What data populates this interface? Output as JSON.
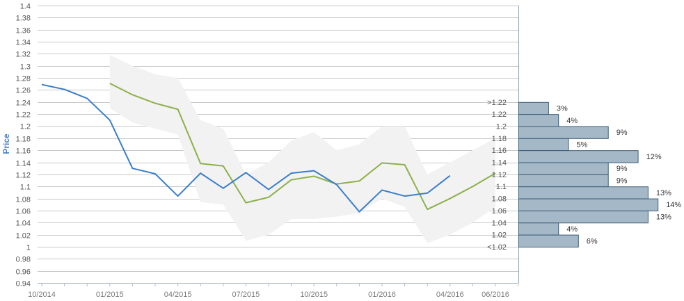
{
  "chart_data": {
    "type": "line",
    "ylabel": "Price",
    "ylim": [
      0.94,
      1.4
    ],
    "y_ticks": [
      "0.94",
      "0.96",
      "0.98",
      "1",
      "1.02",
      "1.04",
      "1.06",
      "1.08",
      "1.1",
      "1.12",
      "1.14",
      "1.16",
      "1.18",
      "1.2",
      "1.22",
      "1.24",
      "1.26",
      "1.28",
      "1.3",
      "1.32",
      "1.34",
      "1.36",
      "1.38",
      "1.4"
    ],
    "x_ticks": [
      {
        "label": "10/2014",
        "month": 0
      },
      {
        "label": "01/2015",
        "month": 3
      },
      {
        "label": "04/2015",
        "month": 6
      },
      {
        "label": "07/2015",
        "month": 9
      },
      {
        "label": "10/2015",
        "month": 12
      },
      {
        "label": "01/2016",
        "month": 15
      },
      {
        "label": "04/2016",
        "month": 18
      },
      {
        "label": "06/2016",
        "month": 20
      }
    ],
    "grid": true,
    "colors": {
      "actual": "#3a7dca",
      "forecast": "#8cb04b",
      "band": "#f2f2f2",
      "bar_fill": "#a4b8c7",
      "bar_stroke": "#3e5d78"
    },
    "series": [
      {
        "key": "actual",
        "months": [
          0,
          1,
          2,
          3,
          4,
          5,
          6,
          7,
          8,
          9,
          10,
          11,
          12,
          13,
          14,
          15,
          16,
          17,
          18
        ],
        "values": [
          1.269,
          1.261,
          1.246,
          1.21,
          1.13,
          1.121,
          1.084,
          1.122,
          1.097,
          1.123,
          1.095,
          1.122,
          1.126,
          1.103,
          1.058,
          1.094,
          1.084,
          1.089,
          1.118
        ]
      },
      {
        "key": "forecast",
        "months": [
          3,
          4,
          5,
          6,
          7,
          8,
          9,
          10,
          11,
          12,
          13,
          14,
          15,
          16,
          17,
          18,
          19,
          20
        ],
        "values": [
          1.271,
          1.252,
          1.238,
          1.228,
          1.138,
          1.134,
          1.073,
          1.082,
          1.111,
          1.117,
          1.104,
          1.109,
          1.139,
          1.136,
          1.062,
          1.08,
          1.1,
          1.122
        ]
      }
    ],
    "band": {
      "months": [
        3,
        4,
        5,
        6,
        7,
        8,
        9,
        10,
        11,
        12,
        13,
        14,
        15,
        16,
        17,
        18,
        19,
        20
      ],
      "upper": [
        1.318,
        1.3,
        1.286,
        1.28,
        1.21,
        1.196,
        1.12,
        1.14,
        1.176,
        1.19,
        1.16,
        1.17,
        1.2,
        1.2,
        1.12,
        1.14,
        1.16,
        1.18
      ],
      "lower": [
        1.23,
        1.206,
        1.196,
        1.186,
        1.074,
        1.07,
        1.01,
        1.02,
        1.046,
        1.046,
        1.05,
        1.056,
        1.08,
        1.066,
        1.006,
        1.02,
        1.04,
        1.066
      ]
    },
    "distribution": [
      {
        "label": ">1.22",
        "low": 1.22,
        "high": 1.24,
        "percent": "3%"
      },
      {
        "label": "1.22",
        "low": 1.2,
        "high": 1.22,
        "percent": "4%"
      },
      {
        "label": "1.2",
        "low": 1.18,
        "high": 1.2,
        "percent": "9%"
      },
      {
        "label": "1.18",
        "low": 1.16,
        "high": 1.18,
        "percent": "5%"
      },
      {
        "label": "1.16",
        "low": 1.14,
        "high": 1.16,
        "percent": "12%"
      },
      {
        "label": "1.14",
        "low": 1.12,
        "high": 1.14,
        "percent": "9%"
      },
      {
        "label": "1.12",
        "low": 1.1,
        "high": 1.12,
        "percent": "9%"
      },
      {
        "label": "1.1",
        "low": 1.08,
        "high": 1.1,
        "percent": "13%"
      },
      {
        "label": "1.08",
        "low": 1.06,
        "high": 1.08,
        "percent": "14%"
      },
      {
        "label": "1.06",
        "low": 1.04,
        "high": 1.06,
        "percent": "13%"
      },
      {
        "label": "1.04",
        "low": 1.02,
        "high": 1.04,
        "percent": "4%"
      },
      {
        "label": "1.02",
        "low": 1.0,
        "high": 1.02,
        "percent": "6%"
      },
      {
        "label": "<1.02",
        "low": 1.0,
        "high": 1.0,
        "percent": ""
      }
    ]
  }
}
